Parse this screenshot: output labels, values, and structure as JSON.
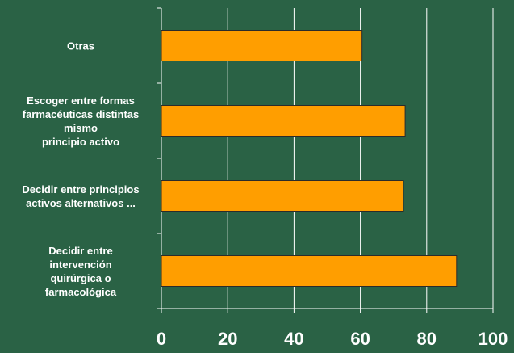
{
  "chart_data": {
    "type": "bar",
    "orientation": "horizontal",
    "categories": [
      [
        "Otras"
      ],
      [
        "Escoger entre formas",
        "farmacéuticas distintas",
        "mismo",
        "principio activo"
      ],
      [
        "Decidir entre principios",
        "activos alternativos ..."
      ],
      [
        "Decidir entre",
        "intervención",
        "quirúrgica o",
        "farmacológica"
      ]
    ],
    "values": [
      60.5,
      73.5,
      73,
      89
    ],
    "xlim": [
      0,
      100
    ],
    "x_ticks": [
      "0",
      "20",
      "40",
      "60",
      "80",
      "100"
    ],
    "grid": true,
    "legend": "none",
    "title": "",
    "xlabel": "",
    "ylabel": ""
  },
  "colors": {
    "background": "#2a6245",
    "bar_fill": "#ff9e00",
    "bar_stroke": "#2b2b2b",
    "grid": "#ffffff",
    "text": "#ffffff"
  }
}
